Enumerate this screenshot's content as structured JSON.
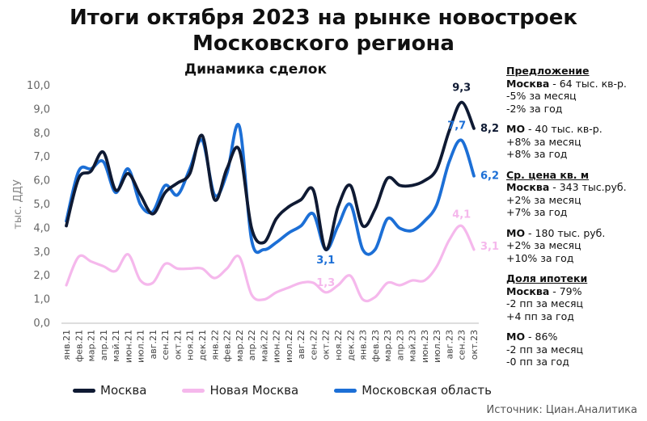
{
  "title_line1": "Итоги октября 2023 на рынке новостроек",
  "title_line2": "Московского региона",
  "subtitle": "Динамика сделок",
  "source": "Источник: Циан.Аналитика",
  "colors": {
    "moscow": "#0f1a33",
    "new_moscow": "#f5b8ec",
    "oblast": "#1c6fd6"
  },
  "chart_data": {
    "type": "line",
    "ylabel": "тыс. ДДУ",
    "ylim": [
      0,
      10
    ],
    "yticks": [
      "0,0",
      "1,0",
      "2,0",
      "3,0",
      "4,0",
      "5,0",
      "6,0",
      "7,0",
      "8,0",
      "9,0",
      "10,0"
    ],
    "categories": [
      "янв.21",
      "фев.21",
      "мар.21",
      "апр.21",
      "май.21",
      "июн.21",
      "июл.21",
      "авг.21",
      "сен.21",
      "окт.21",
      "ноя.21",
      "дек.21",
      "янв.22",
      "фев.22",
      "мар.22",
      "апр.22",
      "май.22",
      "июн.22",
      "июл.22",
      "авг.22",
      "сен.22",
      "окт.22",
      "ноя.22",
      "дек.22",
      "янв.23",
      "фев.23",
      "мар.23",
      "апр.23",
      "май.23",
      "июн.23",
      "июл.23",
      "авг.23",
      "сен.23",
      "окт.23"
    ],
    "series": [
      {
        "name": "Москва",
        "key": "moscow",
        "values": [
          4.1,
          6.1,
          6.4,
          7.2,
          5.6,
          6.3,
          5.4,
          4.6,
          5.5,
          5.9,
          6.3,
          7.9,
          5.2,
          6.5,
          7.3,
          4.0,
          3.4,
          4.4,
          4.9,
          5.2,
          5.6,
          3.1,
          4.9,
          5.8,
          4.1,
          4.8,
          6.1,
          5.8,
          5.8,
          6.0,
          6.5,
          8.1,
          9.3,
          8.2
        ]
      },
      {
        "name": "Новая Москва",
        "key": "new_moscow",
        "values": [
          1.6,
          2.8,
          2.6,
          2.4,
          2.2,
          2.9,
          1.8,
          1.7,
          2.5,
          2.3,
          2.3,
          2.3,
          1.9,
          2.3,
          2.8,
          1.2,
          1.0,
          1.3,
          1.5,
          1.7,
          1.7,
          1.3,
          1.6,
          2.0,
          1.0,
          1.1,
          1.7,
          1.6,
          1.8,
          1.8,
          2.4,
          3.5,
          4.1,
          3.1
        ]
      },
      {
        "name": "Московская область",
        "key": "oblast",
        "values": [
          4.3,
          6.4,
          6.5,
          6.8,
          5.5,
          6.5,
          5.0,
          4.7,
          5.8,
          5.4,
          6.5,
          7.7,
          5.4,
          6.3,
          8.3,
          3.5,
          3.1,
          3.4,
          3.8,
          4.1,
          4.6,
          3.1,
          4.1,
          5.0,
          3.1,
          3.1,
          4.4,
          4.0,
          3.9,
          4.3,
          5.0,
          6.8,
          7.7,
          6.2
        ]
      }
    ],
    "data_labels": [
      {
        "series": "moscow",
        "index": 32,
        "text": "9,3"
      },
      {
        "series": "moscow",
        "index": 33,
        "text": "8,2"
      },
      {
        "series": "oblast",
        "index": 32,
        "text": "7,7"
      },
      {
        "series": "oblast",
        "index": 33,
        "text": "6,2"
      },
      {
        "series": "oblast",
        "index": 21,
        "text": "3,1"
      },
      {
        "series": "new_moscow",
        "index": 32,
        "text": "4,1"
      },
      {
        "series": "new_moscow",
        "index": 33,
        "text": "3,1"
      },
      {
        "series": "new_moscow",
        "index": 21,
        "text": "1,3"
      }
    ],
    "legend": [
      "Москва",
      "Новая Москва",
      "Московская область"
    ],
    "grid": false,
    "legend_position": "bottom"
  },
  "side_panel": {
    "offer": {
      "heading": "Предложение",
      "moscow_label": "Москва",
      "moscow_value": " - 64 тыс. кв-р.",
      "moscow_lines": [
        "-5% за месяц",
        "-2% за год"
      ],
      "mo_label": "МО",
      "mo_value": " - 40 тыс. кв-р.",
      "mo_lines": [
        "+8% за месяц",
        "+8% за год"
      ]
    },
    "price": {
      "heading": "Ср. цена кв. м",
      "moscow_label": "Москва",
      "moscow_value": " - 343 тыс.руб.",
      "moscow_lines": [
        "+2% за месяц",
        "+7% за год"
      ],
      "mo_label": "МО",
      "mo_value": " - 180 тыс. руб.",
      "mo_lines": [
        "+2% за месяц",
        "+10% за год"
      ]
    },
    "mortgage": {
      "heading": "Доля ипотеки",
      "moscow_label": "Москва",
      "moscow_value": " - 79%",
      "moscow_lines": [
        "-2 пп за месяц",
        "+4 пп за год"
      ],
      "mo_label": "МО",
      "mo_value": " - 86%",
      "mo_lines": [
        "-2 пп за месяц",
        "-0 пп за год"
      ]
    }
  }
}
